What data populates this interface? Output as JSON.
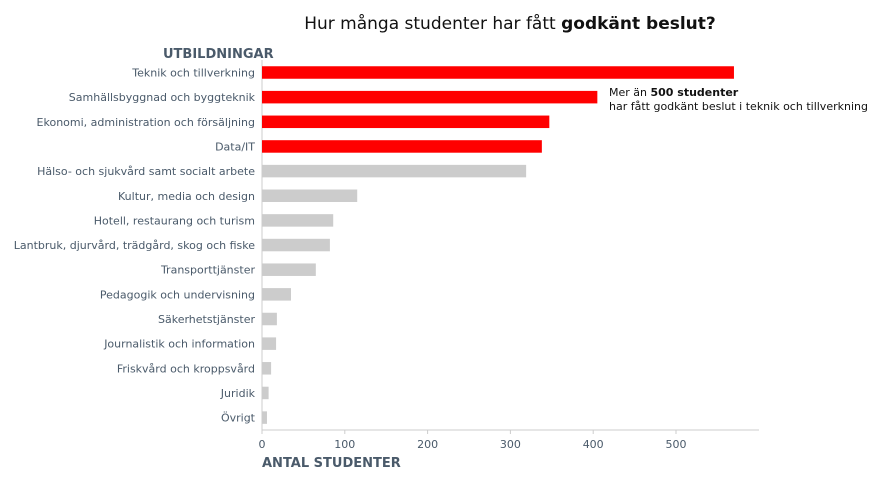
{
  "title": {
    "prefix": "Hur många studenter har fått ",
    "bold": "godkänt beslut?"
  },
  "annotation": {
    "line1_prefix": "Mer än ",
    "line1_bold": "500 studenter",
    "line2": "har fått godkänt beslut i teknik och tillverkning"
  },
  "colors": {
    "highlight": "#ff0000",
    "muted": "#cccccc",
    "label": "#4a5a6a"
  },
  "chart_data": {
    "type": "bar",
    "orientation": "horizontal",
    "categories": [
      "Teknik och tillverkning",
      "Samhällsbyggnad och byggteknik",
      "Ekonomi, administration och försäljning",
      "Data/IT",
      "Hälso- och sjukvård samt socialt arbete",
      "Kultur, media och design",
      "Hotell, restaurang och turism",
      "Lantbruk, djurvård, trädgård, skog och fiske",
      "Transporttjänster",
      "Pedagogik och undervisning",
      "Säkerhetstjänster",
      "Journalistik och information",
      "Friskvård och kroppsvård",
      "Juridik",
      "Övrigt"
    ],
    "values": [
      570,
      405,
      347,
      338,
      319,
      115,
      86,
      82,
      65,
      35,
      18,
      17,
      11,
      8,
      6
    ],
    "highlighted": [
      true,
      true,
      true,
      true,
      false,
      false,
      false,
      false,
      false,
      false,
      false,
      false,
      false,
      false,
      false
    ],
    "xlabel": "ANTAL STUDENTER",
    "ylabel": "UTBILDNINGAR",
    "xticks": [
      0,
      100,
      200,
      300,
      400,
      500
    ],
    "xlim": [
      0,
      600
    ],
    "grid": false
  }
}
